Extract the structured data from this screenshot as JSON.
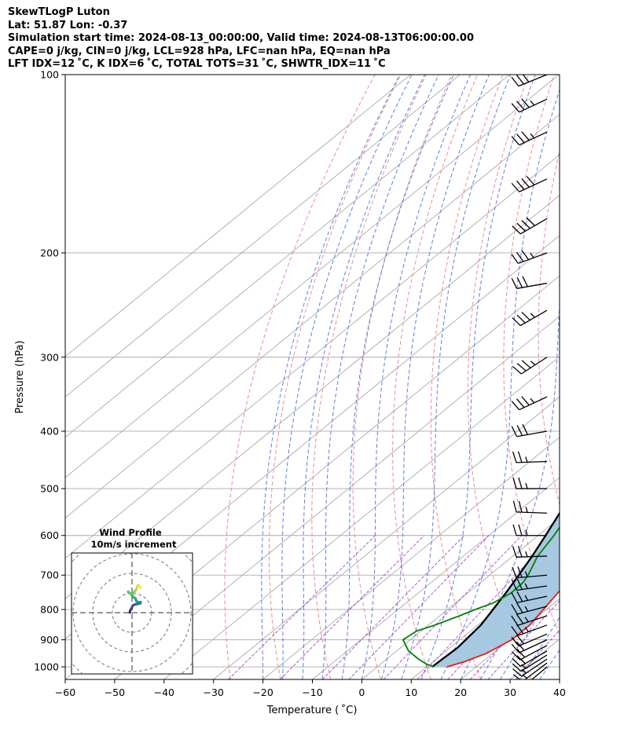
{
  "header": {
    "line1": "SkewTLogP Luton",
    "line2": "Lat: 51.87   Lon: -0.37",
    "line3": "Simulation start time: 2024-08-13_00:00:00, Valid time: 2024-08-13T06:00:00.00",
    "line4": "CAPE=0 j/kg, CIN=0 j/kg, LCL=928 hPa, LFC=nan hPa, EQ=nan hPa",
    "line5": "LFT IDX=12 ˚C, K IDX=6 ˚C, TOTAL TOTS=31 ˚C, SHWTR_IDX=11 ˚C"
  },
  "chart_data": {
    "type": "skewt",
    "xlabel": "Temperature ( ˚C)",
    "ylabel": "Pressure (hPa)",
    "xlim": [
      -60,
      40
    ],
    "ylim": [
      1050,
      100
    ],
    "x_ticks": [
      -60,
      -50,
      -40,
      -30,
      -20,
      -10,
      0,
      10,
      20,
      30,
      40
    ],
    "y_ticks": [
      1000,
      900,
      800,
      700,
      600,
      500,
      400,
      300,
      200,
      100
    ],
    "grid": true,
    "colors": {
      "temperature": "#e41a1c",
      "dewpoint": "#008000",
      "parcel": "#000000",
      "cape_fill": "#a6c8e0",
      "dry_adiabat": "#f08080",
      "moist_adiabat": "#4169e1",
      "mixing_ratio": "#9932cc",
      "isotherm": "#aaaaaa"
    },
    "temperature": {
      "p": [
        1000,
        980,
        950,
        925,
        900,
        850,
        800,
        750,
        700,
        650,
        600,
        550,
        500,
        450,
        425,
        400,
        370,
        350,
        320,
        300,
        270,
        250,
        235,
        220,
        210,
        200,
        185,
        170,
        155,
        140,
        130,
        120,
        110,
        100
      ],
      "t": [
        14.1,
        16.4,
        18.7,
        19.6,
        20.5,
        20.5,
        19.4,
        18.2,
        17.2,
        15.4,
        12.5,
        9.6,
        6.6,
        4.5,
        3.8,
        4.3,
        3.1,
        1.2,
        -2.8,
        -4.9,
        -8.4,
        -8.6,
        -7.8,
        -6.0,
        -4.4,
        -3.0,
        -0.9,
        2.6,
        6.0,
        8.9,
        10.8,
        11.8,
        13.3,
        15.9
      ]
    },
    "dewpoint": {
      "p": [
        1000,
        990,
        970,
        940,
        900,
        870,
        850,
        820,
        800,
        780,
        750,
        720,
        700,
        650,
        600,
        550,
        500,
        450,
        425,
        410,
        400,
        380,
        350,
        320,
        300,
        270,
        250,
        230,
        215,
        200,
        190,
        175,
        160,
        150,
        140,
        130,
        120,
        110,
        100
      ],
      "t": [
        11.5,
        9.4,
        6.4,
        2.4,
        -1.5,
        -0.9,
        1.3,
        4.0,
        5.6,
        7.6,
        8.8,
        8.6,
        7.8,
        5.0,
        3.2,
        0.8,
        -2.0,
        -3.4,
        -5.5,
        -7.3,
        -9.0,
        -4.5,
        -3.5,
        -3.8,
        -4.5,
        -4.8,
        -6.4,
        -7.6,
        -7.9,
        -8.6,
        -9.5,
        -10.4,
        -12.1,
        -15.7,
        -15.1,
        -12.2,
        -10.3,
        -7.9,
        -6.1
      ]
    },
    "parcel": {
      "p": [
        1000,
        960,
        928,
        900,
        850,
        800,
        750,
        700,
        650,
        600,
        550,
        500,
        450,
        400,
        350,
        300,
        250,
        200,
        175,
        150,
        125,
        100
      ],
      "t": [
        11.1,
        11.3,
        11.5,
        11.2,
        10.6,
        9.2,
        7.7,
        5.9,
        3.9,
        1.5,
        -1.2,
        -4.6,
        -8.5,
        -13.3,
        -19.3,
        -26.5,
        -35.6,
        -47.3,
        -54.4,
        -63.0,
        -72.4,
        -83.7
      ]
    },
    "wind": {
      "p": [
        1000,
        985,
        970,
        955,
        940,
        920,
        900,
        880,
        850,
        820,
        790,
        760,
        730,
        700,
        650,
        600,
        550,
        500,
        450,
        400,
        350,
        300,
        250,
        225,
        200,
        175,
        150,
        125,
        110,
        100
      ],
      "speed_kt": [
        12,
        14,
        16,
        17,
        18,
        19,
        21,
        22,
        24,
        24,
        25,
        26,
        27,
        26,
        26,
        26,
        26,
        26,
        26,
        32,
        35,
        34,
        33,
        32,
        35,
        38,
        38,
        36,
        34,
        32
      ],
      "dir_deg": [
        230,
        233,
        236,
        238,
        240,
        242,
        245,
        247,
        250,
        252,
        255,
        258,
        262,
        265,
        268,
        270,
        272,
        270,
        268,
        260,
        245,
        237,
        240,
        260,
        250,
        240,
        245,
        245,
        245,
        248
      ]
    },
    "hodograph": {
      "title": "Wind Profile",
      "subtitle": "10m/s increment",
      "ring_spacing_ms": 10,
      "u_ms": [
        -1.1,
        -1.1,
        -1.0,
        -1.0,
        -0.7,
        -0.3,
        0.0,
        0.5,
        1.2,
        2.1,
        3.0,
        3.6,
        4.3,
        4.4,
        3.4,
        2.1,
        1.9,
        0.5,
        -0.5,
        -1.8,
        -2.0,
        -1.1,
        0.5,
        1.0,
        1.8,
        2.4,
        2.5,
        3.1,
        3.7,
        4.4
      ],
      "v_ms": [
        0.1,
        0.3,
        0.5,
        1.0,
        1.4,
        2.0,
        2.9,
        3.7,
        4.1,
        4.3,
        4.5,
        4.6,
        4.8,
        5.4,
        5.2,
        5.9,
        7.1,
        8.1,
        9.4,
        10.3,
        10.7,
        9.9,
        9.4,
        10.6,
        11.3,
        12.4,
        13.2,
        14.0,
        13.5,
        12.6
      ]
    }
  }
}
